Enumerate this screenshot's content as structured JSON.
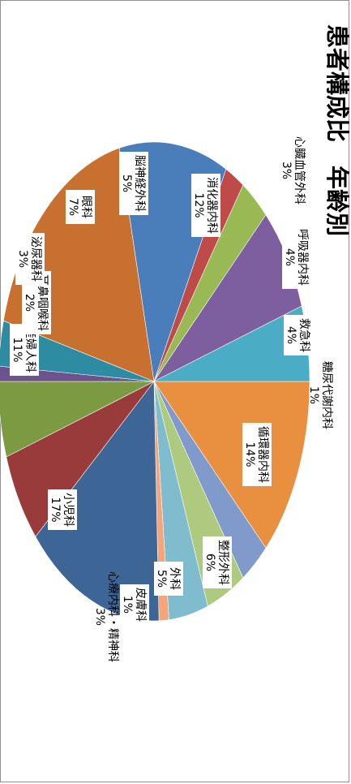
{
  "chart_data": {
    "type": "pie",
    "title": "患者構成比　年齢別",
    "rotation": "90deg clockwise",
    "slices": [
      {
        "label": "消化器内科",
        "value": 12,
        "value_text": "12%",
        "color": "#E8903F"
      },
      {
        "label": "心臓血管外科",
        "value": 3,
        "value_text": "3%",
        "color": "#7F9ACB"
      },
      {
        "label": "呼吸器内科",
        "value": 4,
        "value_text": "4%",
        "color": "#AECA7F"
      },
      {
        "label": "救急科",
        "value": 4,
        "value_text": "4%",
        "color": "#7EBCCE"
      },
      {
        "label": "糖尿代謝内科",
        "value": 1,
        "value_text": "1%",
        "color": "#F4A57A"
      },
      {
        "label": "循環器内科",
        "value": 14,
        "value_text": "14%",
        "color": "#3D6596"
      },
      {
        "label": "整形外科",
        "value": 6,
        "value_text": "6%",
        "color": "#983B3A"
      },
      {
        "label": "外科",
        "value": 5,
        "value_text": "5%",
        "color": "#7B9A41"
      },
      {
        "label": "皮膚科",
        "value": 1,
        "value_text": "1%",
        "color": "#6D538E"
      },
      {
        "label": "心療内科・精神科",
        "value": 3,
        "value_text": "3%",
        "color": "#2E8CA2"
      },
      {
        "label": "小児科",
        "value": 17,
        "value_text": "17%",
        "color": "#C8702F"
      },
      {
        "label": "産婦人科",
        "value": 11,
        "value_text": "11%",
        "color": "#4A7EBB"
      },
      {
        "label": "耳鼻咽喉科",
        "value": 2,
        "value_text": "2%",
        "color": "#BE4B48"
      },
      {
        "label": "泌尿器科",
        "value": 3,
        "value_text": "3%",
        "color": "#98B954"
      },
      {
        "label": "眼科",
        "value": 7,
        "value_text": "7%",
        "color": "#7D5FA0"
      },
      {
        "label": "脳神経外科",
        "value": 5,
        "value_text": "5%",
        "color": "#4AACC5"
      }
    ],
    "legend": "none",
    "grid": false
  }
}
